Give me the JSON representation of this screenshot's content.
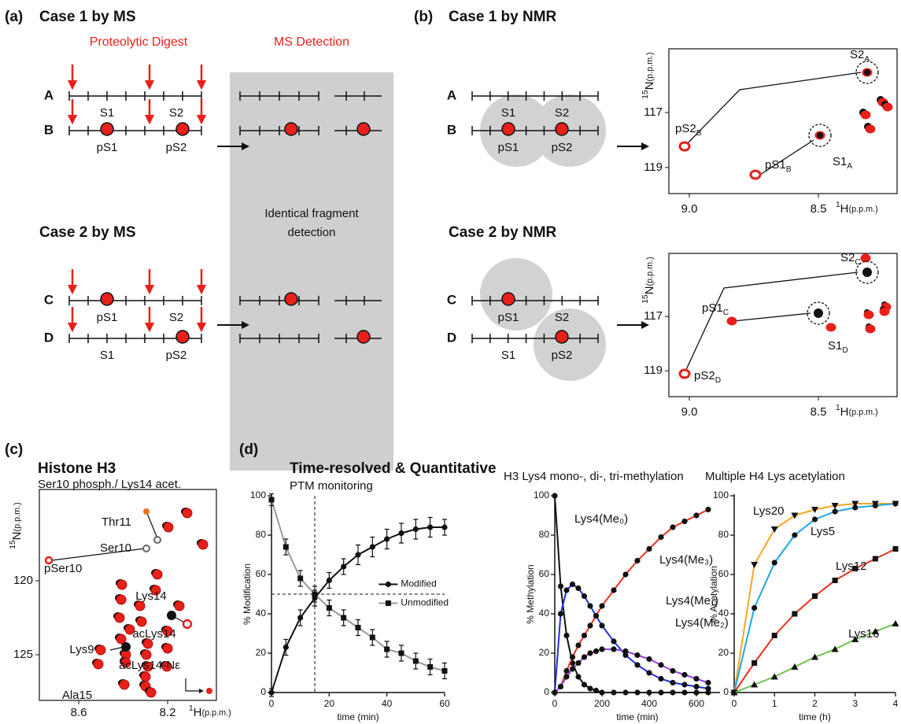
{
  "panel_a": {
    "label": "(a)",
    "case1": "Case 1 by MS",
    "case2": "Case 2 by MS",
    "digest": "Proteolytic Digest",
    "detection": "MS Detection",
    "box_text": [
      "Identical fragment",
      "detection"
    ],
    "rows": [
      {
        "name": "A",
        "sites": [
          "S1",
          "S2"
        ]
      },
      {
        "name": "B",
        "sites": [
          "pS1",
          "pS2"
        ]
      },
      {
        "name": "C",
        "sites": [
          "pS1",
          "S2"
        ]
      },
      {
        "name": "D",
        "sites": [
          "S1",
          "pS2"
        ]
      }
    ]
  },
  "panel_b": {
    "label": "(b)",
    "case1": "Case 1 by NMR",
    "case2": "Case 2 by NMR",
    "rows": [
      {
        "name": "A",
        "sites": [
          "S1",
          "S2"
        ]
      },
      {
        "name": "B",
        "sites": [
          "pS1",
          "pS2"
        ]
      },
      {
        "name": "C",
        "sites": [
          "pS1",
          "S2"
        ]
      },
      {
        "name": "D",
        "sites": [
          "S1",
          "pS2"
        ]
      }
    ],
    "spectra": [
      {
        "peaks": [
          {
            "text": "S2",
            "sub": "A"
          },
          {
            "text": "pS2",
            "sub": "B"
          },
          {
            "text": "S1",
            "sub": "A"
          },
          {
            "text": "pS1",
            "sub": "B"
          }
        ],
        "xticks": [
          "9.0",
          "8.5"
        ],
        "yticks": [
          "117",
          "119"
        ]
      },
      {
        "peaks": [
          {
            "text": "S2",
            "sub": "C"
          },
          {
            "text": "pS1",
            "sub": "C"
          },
          {
            "text": "S1",
            "sub": "D"
          },
          {
            "text": "pS2",
            "sub": "D"
          }
        ],
        "xticks": [
          "9.0",
          "8.5"
        ],
        "yticks": [
          "117",
          "119"
        ]
      }
    ],
    "x_label": {
      "sup": "1",
      "text": "H",
      "unit": "(p.p.m.)"
    },
    "y_label": {
      "sup": "15",
      "text": "N",
      "unit": "(p.p.m.)"
    }
  },
  "panel_c": {
    "label": "(c)",
    "title": "Histone H3",
    "subtitle": "Ser10 phosph./ Lys14 acet.",
    "peaks": [
      "Thr11",
      "Ser10",
      "pSer10",
      "Lys14",
      "acLys14",
      "Lys9",
      "acLys14-Nε",
      "Ala15"
    ],
    "xticks": [
      "8.6",
      "8.2"
    ],
    "yticks": [
      "120",
      "125"
    ],
    "x_label": {
      "sup": "1",
      "text": "H",
      "unit": "(p.p.m.)"
    },
    "y_label": {
      "sup": "15",
      "text": "N",
      "unit": "(p.p.m.)"
    }
  },
  "panel_d": {
    "label": "(d)",
    "title": "Time-resolved & Quantitative",
    "subtitle": "PTM monitoring"
  },
  "chart_data": [
    {
      "type": "line",
      "ylabel": "% Modification",
      "xlabel": "time (min)",
      "x": [
        0,
        5,
        10,
        15,
        20,
        25,
        30,
        35,
        40,
        45,
        50,
        55,
        60
      ],
      "xlim": [
        0,
        60
      ],
      "xticks": [
        0,
        20,
        40,
        60
      ],
      "ylim": [
        0,
        100
      ],
      "yticks": [
        0,
        20,
        40,
        60,
        80,
        100
      ],
      "legend": "right",
      "marker_color": "#111111",
      "vlines": [
        15
      ],
      "hlines": [
        50
      ],
      "series": [
        {
          "name": "Modified",
          "color": "#111111",
          "marker": "circle",
          "values": [
            0,
            23,
            38,
            48,
            57,
            64,
            70,
            74,
            78,
            81,
            83,
            84,
            84
          ],
          "errors": [
            2,
            4,
            4,
            4,
            4,
            4,
            5,
            5,
            5,
            5,
            5,
            5,
            4
          ]
        },
        {
          "name": "Unmodified",
          "color": "#999999",
          "marker": "square",
          "values": [
            98,
            74,
            58,
            50,
            43,
            38,
            33,
            28,
            22,
            20,
            16,
            13,
            11
          ],
          "errors": [
            3,
            4,
            4,
            4,
            4,
            4,
            4,
            4,
            4,
            4,
            4,
            4,
            4
          ]
        }
      ]
    },
    {
      "type": "line",
      "title": "H3 Lys4 mono-, di-, tri-methylation",
      "ylabel": "% Methylation",
      "xlabel": "time (min)",
      "x": [
        0,
        25,
        50,
        75,
        100,
        125,
        150,
        175,
        200,
        250,
        300,
        350,
        400,
        450,
        500,
        550,
        600,
        650
      ],
      "xlim": [
        0,
        700
      ],
      "xticks": [
        0,
        200,
        400,
        600
      ],
      "ylim": [
        0,
        100
      ],
      "yticks": [
        0,
        20,
        40,
        60,
        80,
        100
      ],
      "legend": "inline",
      "marker_color": "#111111",
      "series": [
        {
          "name": "Lys4(Me₀)",
          "color": "#111111",
          "marker": "circle",
          "values": [
            100,
            54,
            29,
            15,
            8,
            4,
            2,
            1,
            0,
            0,
            0,
            0,
            0,
            0,
            0,
            0,
            0,
            0
          ]
        },
        {
          "name": "Lys4(Me₃)",
          "color": "#e8321e",
          "marker": "circle",
          "values": [
            0,
            3,
            11,
            18,
            24,
            29,
            34,
            39,
            44,
            52,
            60,
            67,
            73,
            79,
            84,
            87,
            90,
            93
          ]
        },
        {
          "name": "Lys4(Me₁)",
          "color": "#1f2ee0",
          "marker": "circle",
          "values": [
            0,
            40,
            52,
            55,
            53,
            49,
            44,
            39,
            34,
            26,
            19,
            14,
            10,
            7,
            5,
            4,
            3,
            2
          ]
        },
        {
          "name": "Lys4(Me₂)",
          "color": "#9b3fe0",
          "marker": "circle",
          "values": [
            0,
            3,
            8,
            12,
            15,
            18,
            20,
            21,
            22,
            22,
            21,
            19,
            17,
            14,
            11,
            9,
            7,
            5
          ]
        }
      ]
    },
    {
      "type": "line",
      "title": "Multiple H4 Lys acetylation",
      "ylabel": "% Acetylation",
      "xlabel": "time (h)",
      "x": [
        0,
        0.5,
        1,
        1.5,
        2,
        2.5,
        3,
        3.5,
        4
      ],
      "xlim": [
        0,
        4
      ],
      "xticks": [
        0,
        1,
        2,
        3,
        4
      ],
      "ylim": [
        0,
        100
      ],
      "yticks": [
        0,
        20,
        40,
        60,
        80,
        100
      ],
      "legend": "inline",
      "marker_color": "#111111",
      "series": [
        {
          "name": "Lys20",
          "color": "#f5a623",
          "marker": "triangle-down",
          "values": [
            0,
            65,
            83,
            90,
            93,
            95,
            96,
            96,
            96
          ]
        },
        {
          "name": "Lys5",
          "color": "#1ea7e1",
          "marker": "circle",
          "values": [
            0,
            43,
            66,
            80,
            88,
            92,
            94,
            95,
            96
          ]
        },
        {
          "name": "Lys12",
          "color": "#e8321e",
          "marker": "square",
          "values": [
            0,
            15,
            29,
            40,
            49,
            57,
            63,
            68,
            73
          ]
        },
        {
          "name": "Lys16",
          "color": "#6cc04a",
          "marker": "triangle",
          "values": [
            0,
            4,
            8,
            13,
            18,
            22,
            27,
            31,
            35
          ]
        }
      ]
    }
  ]
}
